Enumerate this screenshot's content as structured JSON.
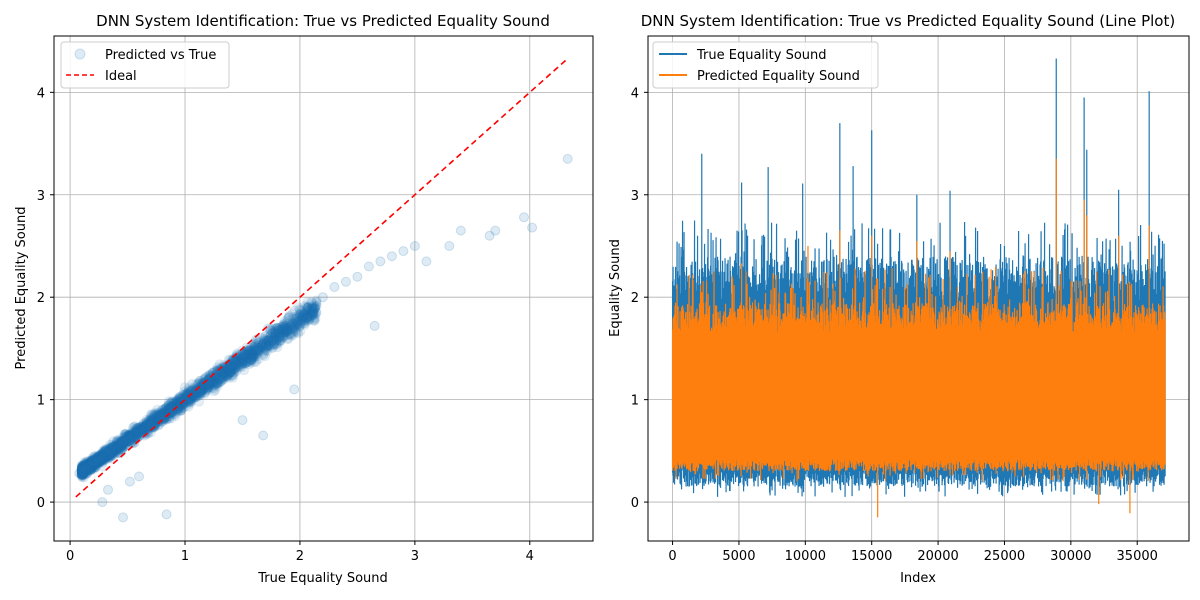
{
  "chart_data": [
    {
      "type": "scatter",
      "title": "DNN System Identification: True vs Predicted Equality Sound",
      "xlabel": "True Equality Sound",
      "ylabel": "Predicted Equality Sound",
      "xlim": [
        -0.14,
        4.55
      ],
      "ylim": [
        -0.38,
        4.55
      ],
      "xticks": [
        0,
        1,
        2,
        3,
        4
      ],
      "yticks": [
        0,
        1,
        2,
        3,
        4
      ],
      "grid": true,
      "legend_position": "top-left",
      "series": [
        {
          "name": "Predicted vs True",
          "color": "#1f77b4",
          "marker": "circle",
          "alpha": 0.12,
          "points": [
            [
              0.08,
              0.28
            ],
            [
              0.12,
              0.35
            ],
            [
              0.15,
              0.3
            ],
            [
              0.2,
              0.4
            ],
            [
              0.25,
              0.45
            ],
            [
              0.3,
              0.5
            ],
            [
              0.35,
              0.52
            ],
            [
              0.4,
              0.55
            ],
            [
              0.45,
              0.6
            ],
            [
              0.5,
              0.62
            ],
            [
              0.55,
              0.65
            ],
            [
              0.6,
              0.7
            ],
            [
              0.7,
              0.75
            ],
            [
              0.8,
              0.82
            ],
            [
              0.9,
              0.9
            ],
            [
              1.0,
              1.0
            ],
            [
              1.1,
              1.08
            ],
            [
              1.2,
              1.18
            ],
            [
              1.3,
              1.25
            ],
            [
              1.4,
              1.35
            ],
            [
              1.5,
              1.45
            ],
            [
              1.6,
              1.55
            ],
            [
              1.7,
              1.62
            ],
            [
              1.8,
              1.7
            ],
            [
              1.9,
              1.8
            ],
            [
              2.0,
              1.88
            ],
            [
              2.1,
              1.95
            ],
            [
              2.2,
              2.0
            ],
            [
              2.3,
              2.1
            ],
            [
              2.4,
              2.15
            ],
            [
              2.5,
              2.2
            ],
            [
              2.6,
              2.3
            ],
            [
              2.7,
              2.35
            ],
            [
              2.8,
              2.4
            ],
            [
              2.9,
              2.45
            ],
            [
              3.0,
              2.5
            ],
            [
              3.1,
              2.35
            ],
            [
              3.3,
              2.5
            ],
            [
              3.4,
              2.65
            ],
            [
              3.65,
              2.6
            ],
            [
              3.7,
              2.65
            ],
            [
              3.95,
              2.78
            ],
            [
              4.02,
              2.68
            ],
            [
              4.33,
              3.35
            ],
            [
              0.28,
              0.0
            ],
            [
              0.46,
              -0.15
            ],
            [
              0.84,
              -0.12
            ],
            [
              0.33,
              0.12
            ],
            [
              0.52,
              0.2
            ],
            [
              1.68,
              0.65
            ],
            [
              1.95,
              1.1
            ],
            [
              2.65,
              1.72
            ],
            [
              1.5,
              0.8
            ],
            [
              0.6,
              0.25
            ]
          ]
        },
        {
          "name": "Ideal",
          "color": "#ff0000",
          "style": "dashed",
          "x": [
            0.05,
            4.33
          ],
          "y": [
            0.05,
            4.33
          ]
        }
      ]
    },
    {
      "type": "line",
      "title": "DNN System Identification: True vs Predicted Equality Sound (Line Plot)",
      "xlabel": "Index",
      "ylabel": "Equality Sound",
      "xlim": [
        -1850,
        38900
      ],
      "ylim": [
        -0.38,
        4.55
      ],
      "xticks": [
        0,
        5000,
        10000,
        15000,
        20000,
        25000,
        30000,
        35000
      ],
      "yticks": [
        0,
        1,
        2,
        3,
        4
      ],
      "n_points": 37100,
      "grid": true,
      "legend_position": "top-left",
      "series": [
        {
          "name": "True Equality Sound",
          "color": "#1f77b4",
          "typical_range": [
            0.15,
            2.4
          ],
          "peaks": [
            [
              2200,
              3.4
            ],
            [
              5200,
              3.12
            ],
            [
              7200,
              3.27
            ],
            [
              9800,
              3.11
            ],
            [
              12600,
              3.7
            ],
            [
              13600,
              3.28
            ],
            [
              15000,
              3.63
            ],
            [
              18400,
              3.0
            ],
            [
              20900,
              3.04
            ],
            [
              22000,
              2.6
            ],
            [
              25000,
              2.5
            ],
            [
              28900,
              4.33
            ],
            [
              31000,
              3.95
            ],
            [
              31200,
              3.44
            ],
            [
              33600,
              3.05
            ],
            [
              35900,
              4.01
            ],
            [
              36900,
              2.55
            ]
          ]
        },
        {
          "name": "Predicted Equality Sound",
          "color": "#ff7f0e",
          "typical_range": [
            0.3,
            1.95
          ],
          "peaks": [
            [
              2200,
              2.05
            ],
            [
              5200,
              2.33
            ],
            [
              10200,
              2.5
            ],
            [
              12600,
              2.65
            ],
            [
              15000,
              2.6
            ],
            [
              18400,
              2.55
            ],
            [
              20900,
              2.45
            ],
            [
              28900,
              3.35
            ],
            [
              31000,
              2.95
            ],
            [
              31200,
              2.8
            ],
            [
              33600,
              2.6
            ],
            [
              35900,
              2.7
            ]
          ],
          "troughs": [
            [
              15450,
              -0.15
            ],
            [
              32100,
              -0.02
            ],
            [
              34450,
              -0.11
            ]
          ]
        }
      ]
    }
  ]
}
